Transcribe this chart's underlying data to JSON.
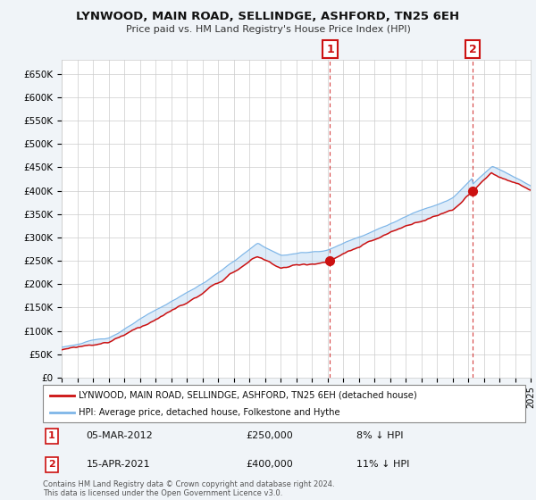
{
  "title": "LYNWOOD, MAIN ROAD, SELLINDGE, ASHFORD, TN25 6EH",
  "subtitle": "Price paid vs. HM Land Registry's House Price Index (HPI)",
  "ylabel_ticks": [
    "£0",
    "£50K",
    "£100K",
    "£150K",
    "£200K",
    "£250K",
    "£300K",
    "£350K",
    "£400K",
    "£450K",
    "£500K",
    "£550K",
    "£600K",
    "£650K"
  ],
  "ylim": [
    0,
    680000
  ],
  "ytick_values": [
    0,
    50000,
    100000,
    150000,
    200000,
    250000,
    300000,
    350000,
    400000,
    450000,
    500000,
    550000,
    600000,
    650000
  ],
  "hpi_color": "#7EB6E8",
  "price_color": "#CC1111",
  "background_color": "#F0F4F8",
  "plot_bg_color": "#FFFFFF",
  "legend_label_price": "LYNWOOD, MAIN ROAD, SELLINDGE, ASHFORD, TN25 6EH (detached house)",
  "legend_label_hpi": "HPI: Average price, detached house, Folkestone and Hythe",
  "annotation1_date": "05-MAR-2012",
  "annotation1_price": "£250,000",
  "annotation1_pct": "8% ↓ HPI",
  "annotation1_value": 250000,
  "annotation1_year": 2012.17,
  "annotation2_date": "15-APR-2021",
  "annotation2_price": "£400,000",
  "annotation2_pct": "11% ↓ HPI",
  "annotation2_value": 400000,
  "annotation2_year": 2021.29,
  "footer": "Contains HM Land Registry data © Crown copyright and database right 2024.\nThis data is licensed under the Open Government Licence v3.0.",
  "xstart": 1995,
  "xend": 2025
}
